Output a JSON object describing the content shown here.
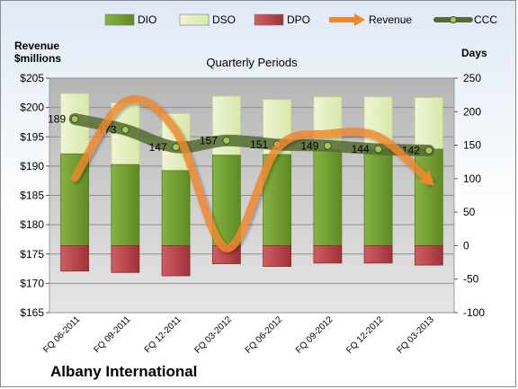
{
  "company": "Albany International",
  "chart_data": {
    "type": "bar",
    "title": "Quarterly Periods",
    "left_axis_label_line1": "Revenue",
    "left_axis_label_line2": "$millions",
    "right_axis_label": "Days",
    "categories": [
      "FQ 06-2011",
      "FQ 09-2011",
      "FQ 12-2011",
      "FQ 03-2012",
      "FQ 06-2012",
      "FQ 09-2012",
      "FQ 12-2012",
      "FQ 03-2013"
    ],
    "left_axis": {
      "range": [
        165,
        205
      ],
      "ticks": [
        "$165",
        "$170",
        "$175",
        "$180",
        "$185",
        "$190",
        "$195",
        "$200",
        "$205"
      ]
    },
    "right_axis": {
      "range": [
        -100,
        250
      ],
      "ticks": [
        "-100",
        "-50",
        "0",
        "50",
        "100",
        "150",
        "200",
        "250"
      ]
    },
    "grid": true,
    "legend_position": "top",
    "series": [
      {
        "name": "DIO",
        "kind": "stacked-bar-days",
        "color": "#6f9a2e",
        "values": [
          137,
          121,
          112,
          135,
          136,
          143,
          144,
          144
        ]
      },
      {
        "name": "DSO",
        "kind": "stacked-bar-days",
        "color": "#e4efc0",
        "values": [
          90,
          92,
          85,
          88,
          82,
          79,
          78,
          77
        ]
      },
      {
        "name": "DPO",
        "kind": "negative-bar-days",
        "color": "#b84a50",
        "values": [
          -38,
          -40,
          -45,
          -27,
          -31,
          -26,
          -26,
          -29
        ]
      },
      {
        "name": "Revenue",
        "kind": "line-left-axis",
        "color": "#f0862c",
        "values": [
          188.0,
          201.0,
          196.0,
          176.0,
          193.0,
          195.5,
          195.0,
          187.5
        ]
      },
      {
        "name": "CCC",
        "kind": "line-right-axis",
        "color": "#556b2f",
        "values": [
          189,
          173,
          147,
          157,
          151,
          149,
          144,
          142
        ],
        "labels": [
          "189",
          "173",
          "147",
          "157",
          "151",
          "149",
          "144",
          "142"
        ]
      }
    ]
  }
}
